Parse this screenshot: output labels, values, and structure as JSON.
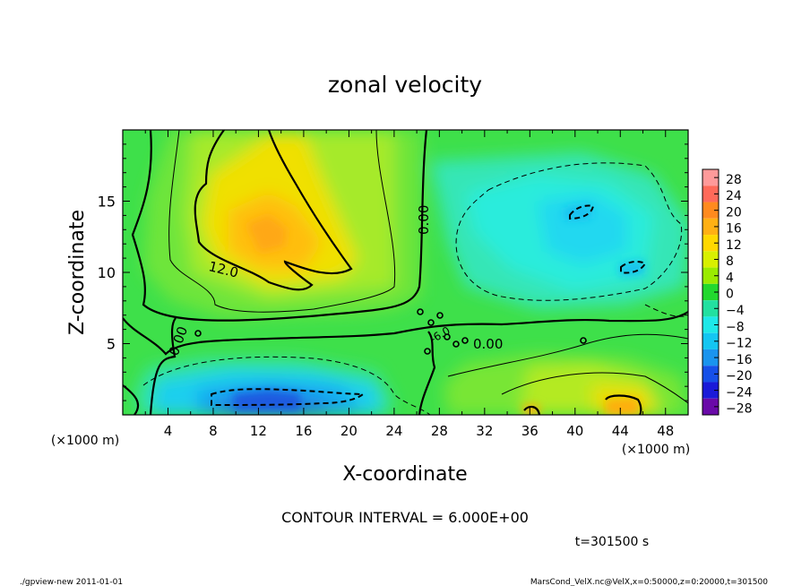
{
  "chart_data": {
    "type": "heatmap",
    "title": "zonal velocity",
    "xlabel": "X-coordinate",
    "ylabel": "Z-coordinate",
    "x_unit_left": "(×1000 m)",
    "x_unit_right": "(×1000 m)",
    "xlim": [
      0,
      50
    ],
    "ylim": [
      0,
      20
    ],
    "x_ticks": [
      4,
      8,
      12,
      16,
      20,
      24,
      28,
      32,
      36,
      40,
      44,
      48
    ],
    "y_ticks": [
      5,
      10,
      15
    ],
    "colorbar": {
      "levels": [
        28,
        24,
        20,
        16,
        12,
        8,
        4,
        0,
        -4,
        -8,
        -12,
        -16,
        -20,
        -24,
        -28
      ],
      "labels": [
        "28",
        "24",
        "20",
        "16",
        "12",
        "8",
        "4",
        "0",
        "−4",
        "−8",
        "−12",
        "−16",
        "−20",
        "−24",
        "−28"
      ],
      "colors": [
        "#ff9a9a",
        "#ff6a5a",
        "#ff8a1e",
        "#ffb014",
        "#ffd800",
        "#d8f000",
        "#9aeb00",
        "#22d82e",
        "#22e0a0",
        "#1ee8e8",
        "#14c6f2",
        "#1a94ee",
        "#1650e8",
        "#1a1ad8",
        "#6a0aa8"
      ]
    },
    "contour_labels": [
      "12.0",
      "0.00",
      "0.00",
      "0.00",
      "-6.0"
    ],
    "contour_interval": "CONTOUR INTERVAL = 6.000E+00",
    "time": "t=301500 s"
  },
  "footer": {
    "left": "./gpview-new  2011-01-01",
    "right": "MarsCond_VelX.nc@VelX,x=0:50000,z=0:20000,t=301500"
  }
}
